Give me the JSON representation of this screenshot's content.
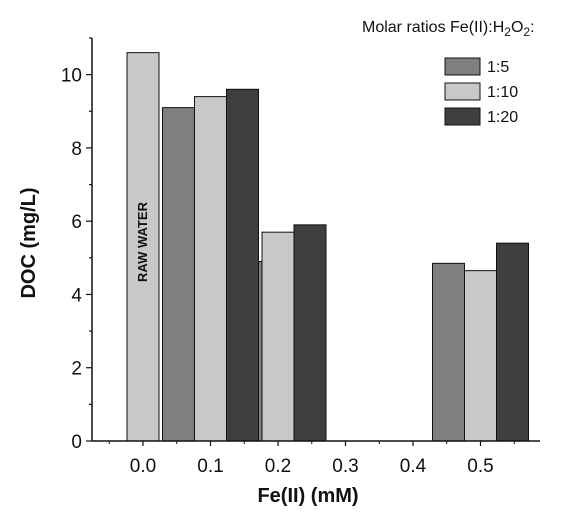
{
  "chart_data": {
    "type": "bar",
    "title_parts": [
      "Molar ratios Fe(II):H",
      "2",
      "O",
      "2",
      ":"
    ],
    "xlabel": "Fe(II) (mM)",
    "ylabel": "DOC (mg/L)",
    "categories": [
      "0.0",
      "0.1",
      "0.2",
      "0.3",
      "0.4",
      "0.5"
    ],
    "ylim": [
      0,
      11
    ],
    "yticks": [
      "0",
      "2",
      "4",
      "6",
      "8",
      "10"
    ],
    "ytick_values": [
      0,
      2,
      4,
      6,
      8,
      10
    ],
    "grid": false,
    "legend_position": "top-right",
    "series": [
      {
        "name": "1:5",
        "color": "#7f7f7f",
        "values": [
          null,
          9.1,
          4.9,
          null,
          null,
          4.85
        ]
      },
      {
        "name": "1:10",
        "color": "#c8c8c8",
        "values": [
          10.6,
          9.4,
          5.7,
          null,
          null,
          4.65
        ]
      },
      {
        "name": "1:20",
        "color": "#3f3f3f",
        "values": [
          null,
          9.6,
          5.9,
          null,
          null,
          5.4
        ]
      }
    ],
    "annotation": "RAW WATER"
  }
}
